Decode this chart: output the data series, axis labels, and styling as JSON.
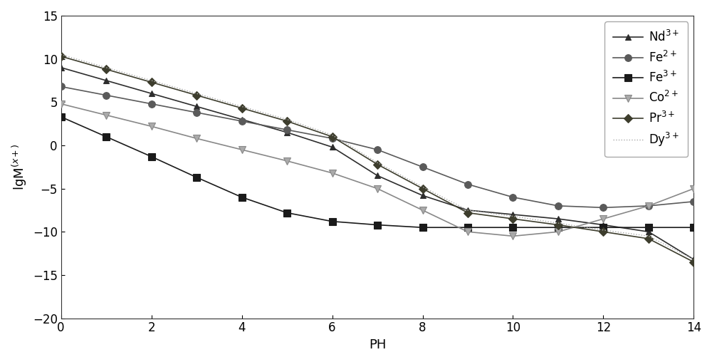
{
  "xlabel": "PH",
  "ylabel": "lgM$^{(x+)}$",
  "xlim": [
    0,
    14
  ],
  "ylim": [
    -20,
    15
  ],
  "xticks": [
    0,
    2,
    4,
    6,
    8,
    10,
    12,
    14
  ],
  "yticks": [
    -20,
    -15,
    -10,
    -5,
    0,
    5,
    10,
    15
  ],
  "series": {
    "Nd3+": {
      "label": "Nd$^{3+}$",
      "color": "#2d2d2d",
      "marker": "^",
      "markersize": 6,
      "linewidth": 1.2,
      "linestyle": "-",
      "mfc": "#2d2d2d",
      "x": [
        0,
        1,
        2,
        3,
        4,
        5,
        6,
        7,
        8,
        9,
        10,
        11,
        12,
        13,
        14
      ],
      "y": [
        9.0,
        7.5,
        6.0,
        4.5,
        3.0,
        1.5,
        -0.2,
        -3.5,
        -5.8,
        -7.5,
        -8.0,
        -8.5,
        -9.2,
        -10.0,
        -13.2
      ]
    },
    "Fe2+": {
      "label": "Fe$^{2+}$",
      "color": "#5a5a5a",
      "marker": "o",
      "markersize": 7,
      "linewidth": 1.2,
      "linestyle": "-",
      "mfc": "#5a5a5a",
      "x": [
        0,
        1,
        2,
        3,
        4,
        5,
        6,
        7,
        8,
        9,
        10,
        11,
        12,
        13,
        14
      ],
      "y": [
        6.8,
        5.8,
        4.8,
        3.8,
        2.8,
        1.8,
        0.8,
        -0.5,
        -2.5,
        -4.5,
        -6.0,
        -7.0,
        -7.2,
        -7.0,
        -6.5
      ]
    },
    "Fe3+": {
      "label": "Fe$^{3+}$",
      "color": "#1a1a1a",
      "marker": "s",
      "markersize": 7,
      "linewidth": 1.2,
      "linestyle": "-",
      "mfc": "#1a1a1a",
      "x": [
        0,
        1,
        2,
        3,
        4,
        5,
        6,
        7,
        8,
        9,
        10,
        11,
        12,
        13,
        14
      ],
      "y": [
        3.3,
        1.0,
        -1.3,
        -3.7,
        -6.0,
        -7.8,
        -8.8,
        -9.2,
        -9.5,
        -9.5,
        -9.5,
        -9.5,
        -9.5,
        -9.5,
        -9.5
      ]
    },
    "Co2+": {
      "label": "Co$^{2+}$",
      "color": "#888888",
      "marker": "v",
      "markersize": 7,
      "linewidth": 1.2,
      "linestyle": "-",
      "mfc": "#aaaaaa",
      "x": [
        0,
        1,
        2,
        3,
        4,
        5,
        6,
        7,
        8,
        9,
        10,
        11,
        12,
        13,
        14
      ],
      "y": [
        4.8,
        3.5,
        2.2,
        0.8,
        -0.5,
        -1.8,
        -3.2,
        -5.0,
        -7.5,
        -10.0,
        -10.5,
        -10.0,
        -8.5,
        -7.0,
        -5.0
      ]
    },
    "Pr3+": {
      "label": "Pr$^{3+}$",
      "color": "#3d3d2d",
      "marker": "D",
      "markersize": 6,
      "linewidth": 1.2,
      "linestyle": "-",
      "mfc": "#3d3d2d",
      "x": [
        0,
        1,
        2,
        3,
        4,
        5,
        6,
        7,
        8,
        9,
        10,
        11,
        12,
        13,
        14
      ],
      "y": [
        10.3,
        8.8,
        7.3,
        5.8,
        4.3,
        2.8,
        1.0,
        -2.2,
        -5.0,
        -7.8,
        -8.5,
        -9.2,
        -10.0,
        -10.8,
        -13.5
      ]
    },
    "Dy3+": {
      "label": "Dy$^{3+}$",
      "color": "#aaaaaa",
      "marker": "None",
      "markersize": 5,
      "linewidth": 1.0,
      "linestyle": ":",
      "mfc": "#aaaaaa",
      "x": [
        0,
        1,
        2,
        3,
        4,
        5,
        6,
        7,
        8,
        9,
        10,
        11,
        12,
        13,
        14
      ],
      "y": [
        10.5,
        9.0,
        7.5,
        6.0,
        4.5,
        3.0,
        1.2,
        -2.0,
        -4.8,
        -7.5,
        -8.2,
        -9.0,
        -9.8,
        -10.5,
        -13.2
      ]
    }
  },
  "background_color": "#ffffff",
  "legend_fontsize": 12,
  "axis_fontsize": 13,
  "tick_fontsize": 12
}
